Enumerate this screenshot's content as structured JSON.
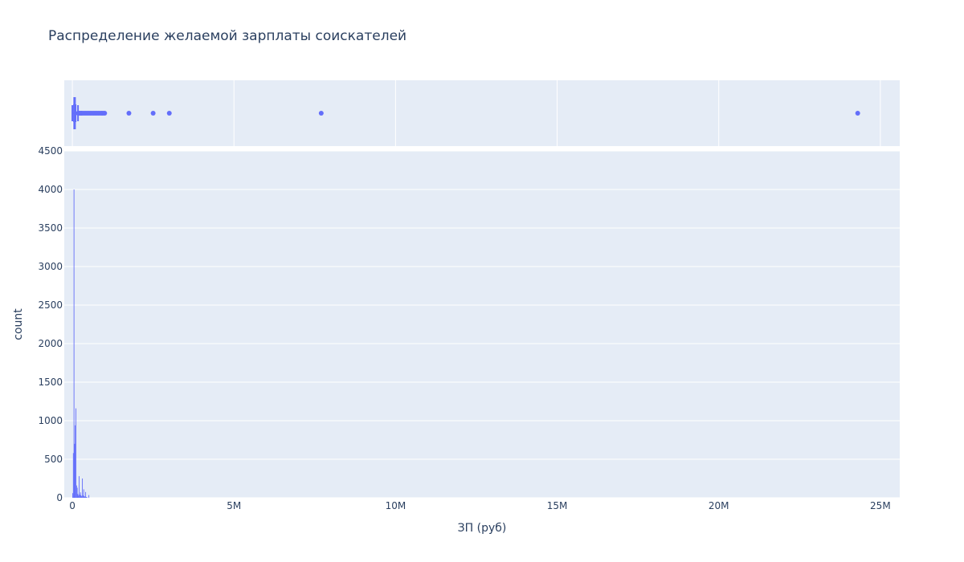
{
  "chart_data": {
    "type": "histogram",
    "title": "Распределение желаемой зарплаты соискателей",
    "xlabel": "ЗП (руб)",
    "ylabel": "count",
    "color": "#636efa",
    "plot_bg": "#e5ecf6",
    "grid_color": "#ffffff",
    "text_color": "#2a3f5f",
    "xlim": [
      -250000,
      25600000
    ],
    "ylim": [
      0,
      4500
    ],
    "x_ticks": [
      {
        "value": 0,
        "label": "0"
      },
      {
        "value": 5000000,
        "label": "5M"
      },
      {
        "value": 10000000,
        "label": "10M"
      },
      {
        "value": 15000000,
        "label": "15M"
      },
      {
        "value": 20000000,
        "label": "20M"
      },
      {
        "value": 25000000,
        "label": "25M"
      }
    ],
    "y_ticks": [
      {
        "value": 0,
        "label": "0"
      },
      {
        "value": 500,
        "label": "500"
      },
      {
        "value": 1000,
        "label": "1000"
      },
      {
        "value": 1500,
        "label": "1500"
      },
      {
        "value": 2000,
        "label": "2000"
      },
      {
        "value": 2500,
        "label": "2500"
      },
      {
        "value": 3000,
        "label": "3000"
      },
      {
        "value": 3500,
        "label": "3500"
      },
      {
        "value": 4000,
        "label": "4000"
      },
      {
        "value": 4500,
        "label": "4500"
      }
    ],
    "bars": [
      {
        "x": 10000,
        "count": 60
      },
      {
        "x": 30000,
        "count": 580
      },
      {
        "x": 50000,
        "count": 4000
      },
      {
        "x": 70000,
        "count": 700
      },
      {
        "x": 90000,
        "count": 940
      },
      {
        "x": 110000,
        "count": 1160
      },
      {
        "x": 130000,
        "count": 160
      },
      {
        "x": 150000,
        "count": 130
      },
      {
        "x": 170000,
        "count": 50
      },
      {
        "x": 190000,
        "count": 30
      },
      {
        "x": 210000,
        "count": 280
      },
      {
        "x": 230000,
        "count": 40
      },
      {
        "x": 250000,
        "count": 70
      },
      {
        "x": 270000,
        "count": 30
      },
      {
        "x": 290000,
        "count": 20
      },
      {
        "x": 310000,
        "count": 250
      },
      {
        "x": 330000,
        "count": 30
      },
      {
        "x": 350000,
        "count": 110
      },
      {
        "x": 370000,
        "count": 20
      },
      {
        "x": 390000,
        "count": 15
      },
      {
        "x": 410000,
        "count": 75
      },
      {
        "x": 430000,
        "count": 10
      },
      {
        "x": 450000,
        "count": 8
      },
      {
        "x": 510000,
        "count": 35
      }
    ],
    "box": {
      "min": 0,
      "q1": 50000,
      "median": 70000,
      "q3": 100000,
      "upper_fence": 175000,
      "outliers": [
        180000,
        200000,
        220000,
        250000,
        280000,
        300000,
        350000,
        400000,
        450000,
        500000,
        550000,
        600000,
        650000,
        700000,
        750000,
        800000,
        850000,
        900000,
        950000,
        1000000,
        1750000,
        2500000,
        3000000,
        7700000,
        24300000
      ]
    }
  }
}
